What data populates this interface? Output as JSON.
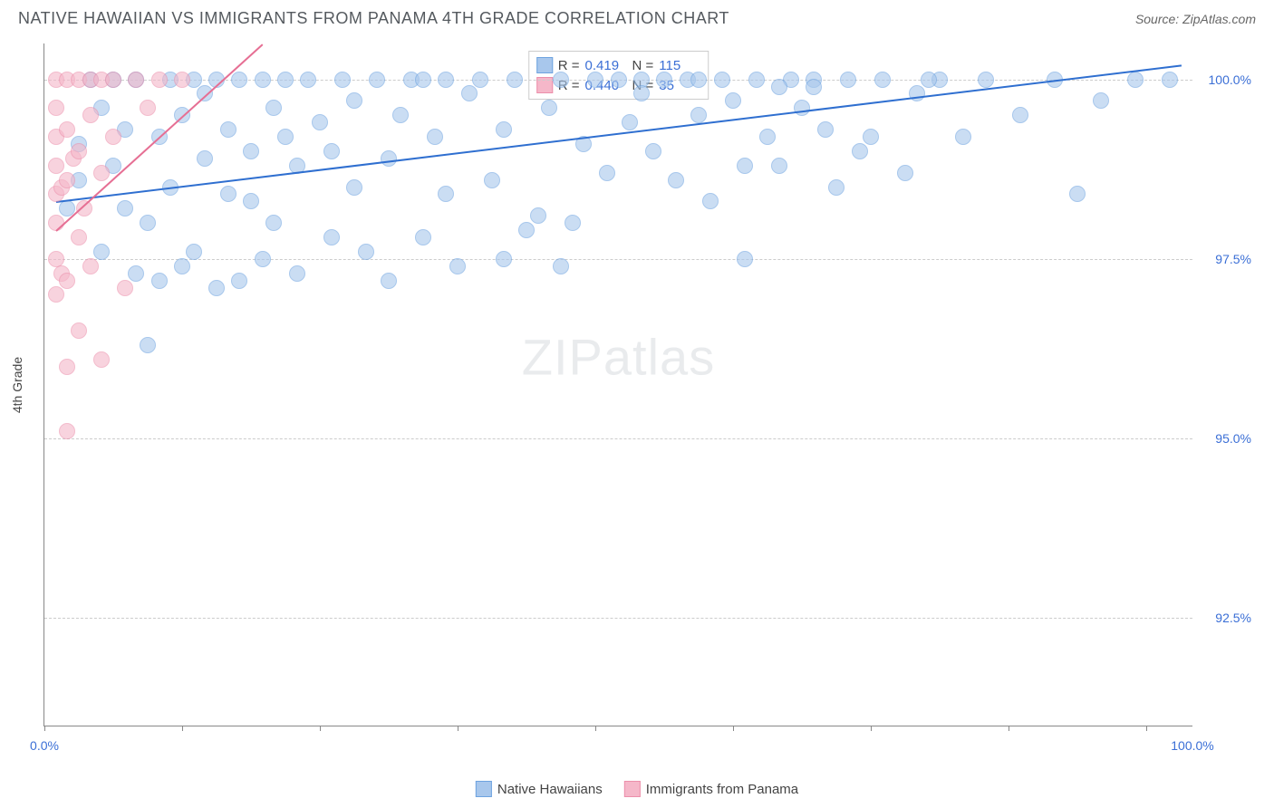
{
  "title": "NATIVE HAWAIIAN VS IMMIGRANTS FROM PANAMA 4TH GRADE CORRELATION CHART",
  "source": "Source: ZipAtlas.com",
  "watermark": {
    "zip": "ZIP",
    "atlas": "atlas"
  },
  "chart": {
    "type": "scatter",
    "ylabel": "4th Grade",
    "background_color": "#ffffff",
    "grid_color": "#cccccc",
    "axis_color": "#888888",
    "tick_label_color": "#3b6fd6",
    "label_fontsize": 14,
    "title_fontsize": 18,
    "title_color": "#555a5f",
    "xlim": [
      0,
      100
    ],
    "ylim": [
      91,
      100.5
    ],
    "xticks": [
      0,
      100
    ],
    "xtick_labels": [
      "0.0%",
      "100.0%"
    ],
    "xtick_marks": [
      0,
      12,
      24,
      36,
      48,
      60,
      72,
      84,
      96
    ],
    "yticks": [
      92.5,
      95.0,
      97.5,
      100.0
    ],
    "ytick_labels": [
      "92.5%",
      "95.0%",
      "97.5%",
      "100.0%"
    ],
    "marker_radius": 9,
    "marker_border_width": 1.2,
    "series": [
      {
        "name": "Native Hawaiians",
        "fill_color": "#a8c7ec",
        "border_color": "#6ea3e0",
        "R": "0.419",
        "N": "115",
        "trend": {
          "x1": 1,
          "y1": 98.3,
          "x2": 99,
          "y2": 100.2,
          "color": "#2f6fd0",
          "width": 2
        },
        "points": [
          [
            2,
            98.2
          ],
          [
            3,
            98.6
          ],
          [
            3,
            99.1
          ],
          [
            4,
            100.0
          ],
          [
            5,
            97.6
          ],
          [
            5,
            99.6
          ],
          [
            6,
            100.0
          ],
          [
            6,
            98.8
          ],
          [
            7,
            98.2
          ],
          [
            7,
            99.3
          ],
          [
            8,
            97.3
          ],
          [
            8,
            100.0
          ],
          [
            9,
            98.0
          ],
          [
            9,
            96.3
          ],
          [
            10,
            97.2
          ],
          [
            10,
            99.2
          ],
          [
            11,
            100.0
          ],
          [
            11,
            98.5
          ],
          [
            12,
            97.4
          ],
          [
            12,
            99.5
          ],
          [
            13,
            100.0
          ],
          [
            13,
            97.6
          ],
          [
            14,
            99.8
          ],
          [
            14,
            98.9
          ],
          [
            15,
            100.0
          ],
          [
            15,
            97.1
          ],
          [
            16,
            99.3
          ],
          [
            16,
            98.4
          ],
          [
            17,
            100.0
          ],
          [
            17,
            97.2
          ],
          [
            18,
            99.0
          ],
          [
            18,
            98.3
          ],
          [
            19,
            100.0
          ],
          [
            19,
            97.5
          ],
          [
            20,
            99.6
          ],
          [
            20,
            98.0
          ],
          [
            21,
            100.0
          ],
          [
            21,
            99.2
          ],
          [
            22,
            98.8
          ],
          [
            22,
            97.3
          ],
          [
            23,
            100.0
          ],
          [
            24,
            99.4
          ],
          [
            25,
            97.8
          ],
          [
            25,
            99.0
          ],
          [
            26,
            100.0
          ],
          [
            27,
            98.5
          ],
          [
            27,
            99.7
          ],
          [
            28,
            97.6
          ],
          [
            29,
            100.0
          ],
          [
            30,
            98.9
          ],
          [
            30,
            97.2
          ],
          [
            31,
            99.5
          ],
          [
            32,
            100.0
          ],
          [
            33,
            97.8
          ],
          [
            34,
            99.2
          ],
          [
            35,
            100.0
          ],
          [
            35,
            98.4
          ],
          [
            36,
            97.4
          ],
          [
            37,
            99.8
          ],
          [
            38,
            100.0
          ],
          [
            39,
            98.6
          ],
          [
            40,
            97.5
          ],
          [
            40,
            99.3
          ],
          [
            41,
            100.0
          ],
          [
            42,
            97.9
          ],
          [
            43,
            98.1
          ],
          [
            44,
            99.6
          ],
          [
            45,
            100.0
          ],
          [
            46,
            98.0
          ],
          [
            47,
            99.1
          ],
          [
            48,
            100.0
          ],
          [
            49,
            98.7
          ],
          [
            50,
            100.0
          ],
          [
            51,
            99.4
          ],
          [
            52,
            100.0
          ],
          [
            53,
            99.0
          ],
          [
            54,
            100.0
          ],
          [
            55,
            98.6
          ],
          [
            56,
            100.0
          ],
          [
            57,
            99.5
          ],
          [
            58,
            98.3
          ],
          [
            59,
            100.0
          ],
          [
            60,
            99.7
          ],
          [
            61,
            97.5
          ],
          [
            62,
            100.0
          ],
          [
            63,
            99.2
          ],
          [
            64,
            98.8
          ],
          [
            65,
            100.0
          ],
          [
            66,
            99.6
          ],
          [
            67,
            100.0
          ],
          [
            68,
            99.3
          ],
          [
            69,
            98.5
          ],
          [
            70,
            100.0
          ],
          [
            71,
            99.0
          ],
          [
            73,
            100.0
          ],
          [
            75,
            98.7
          ],
          [
            76,
            99.8
          ],
          [
            78,
            100.0
          ],
          [
            80,
            99.2
          ],
          [
            82,
            100.0
          ],
          [
            85,
            99.5
          ],
          [
            88,
            100.0
          ],
          [
            90,
            98.4
          ],
          [
            92,
            99.7
          ],
          [
            95,
            100.0
          ],
          [
            98,
            100.0
          ],
          [
            61,
            98.8
          ],
          [
            64,
            99.9
          ],
          [
            45,
            97.4
          ],
          [
            33,
            100.0
          ],
          [
            52,
            99.8
          ],
          [
            57,
            100.0
          ],
          [
            67,
            99.9
          ],
          [
            72,
            99.2
          ],
          [
            77,
            100.0
          ]
        ]
      },
      {
        "name": "Immigrants from Panama",
        "fill_color": "#f5b7c9",
        "border_color": "#ec8fab",
        "R": "0.440",
        "N": "35",
        "trend": {
          "x1": 1,
          "y1": 97.9,
          "x2": 19,
          "y2": 100.5,
          "color": "#e66f94",
          "width": 2
        },
        "points": [
          [
            1,
            97.0
          ],
          [
            1,
            97.5
          ],
          [
            1,
            98.0
          ],
          [
            1,
            98.4
          ],
          [
            1,
            98.8
          ],
          [
            1,
            99.2
          ],
          [
            1,
            99.6
          ],
          [
            1,
            100.0
          ],
          [
            1.5,
            97.3
          ],
          [
            1.5,
            98.5
          ],
          [
            2,
            95.1
          ],
          [
            2,
            96.0
          ],
          [
            2,
            97.2
          ],
          [
            2,
            98.6
          ],
          [
            2,
            99.3
          ],
          [
            2,
            100.0
          ],
          [
            2.5,
            98.9
          ],
          [
            3,
            96.5
          ],
          [
            3,
            97.8
          ],
          [
            3,
            99.0
          ],
          [
            3,
            100.0
          ],
          [
            3.5,
            98.2
          ],
          [
            4,
            97.4
          ],
          [
            4,
            99.5
          ],
          [
            4,
            100.0
          ],
          [
            5,
            96.1
          ],
          [
            5,
            98.7
          ],
          [
            5,
            100.0
          ],
          [
            6,
            99.2
          ],
          [
            6,
            100.0
          ],
          [
            7,
            97.1
          ],
          [
            8,
            100.0
          ],
          [
            9,
            99.6
          ],
          [
            10,
            100.0
          ],
          [
            12,
            100.0
          ]
        ]
      }
    ]
  },
  "legend_top": {
    "r_label": "R =",
    "n_label": "N ="
  },
  "legend_bottom": {
    "items": [
      "Native Hawaiians",
      "Immigrants from Panama"
    ]
  }
}
